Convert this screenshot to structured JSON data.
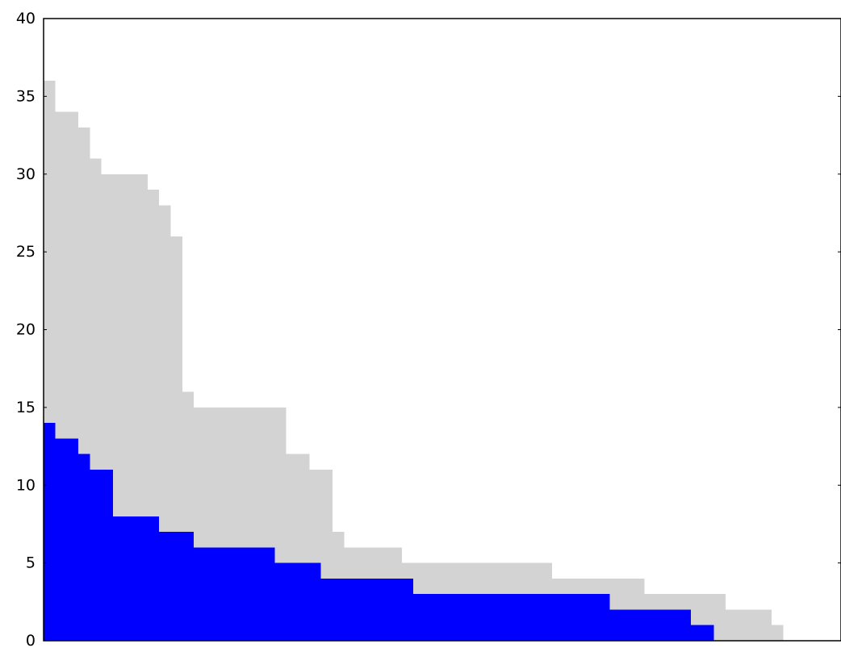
{
  "chart_data": {
    "type": "area",
    "step": "post",
    "xlim": [
      0,
      69
    ],
    "ylim": [
      0,
      40
    ],
    "yticks": [
      0,
      5,
      10,
      15,
      20,
      25,
      30,
      35,
      40
    ],
    "xticks": [],
    "grid": false,
    "legend": "none",
    "series": [
      {
        "color": "#d3d3d3",
        "points": [
          [
            0,
            36
          ],
          [
            1,
            34
          ],
          [
            3,
            33
          ],
          [
            4,
            31
          ],
          [
            5,
            30
          ],
          [
            9,
            29
          ],
          [
            10,
            28
          ],
          [
            11,
            26
          ],
          [
            12,
            16
          ],
          [
            13,
            15
          ],
          [
            21,
            12
          ],
          [
            23,
            11
          ],
          [
            25,
            7
          ],
          [
            26,
            6
          ],
          [
            31,
            5
          ],
          [
            44,
            4
          ],
          [
            52,
            3
          ],
          [
            59,
            2
          ],
          [
            63,
            1
          ],
          [
            64,
            0
          ]
        ]
      },
      {
        "color": "#0000ff",
        "points": [
          [
            0,
            14
          ],
          [
            1,
            13
          ],
          [
            3,
            12
          ],
          [
            4,
            11
          ],
          [
            6,
            8
          ],
          [
            10,
            7
          ],
          [
            13,
            6
          ],
          [
            20,
            5
          ],
          [
            24,
            4
          ],
          [
            32,
            3
          ],
          [
            49,
            2
          ],
          [
            56,
            1
          ],
          [
            58,
            0
          ]
        ]
      }
    ]
  }
}
